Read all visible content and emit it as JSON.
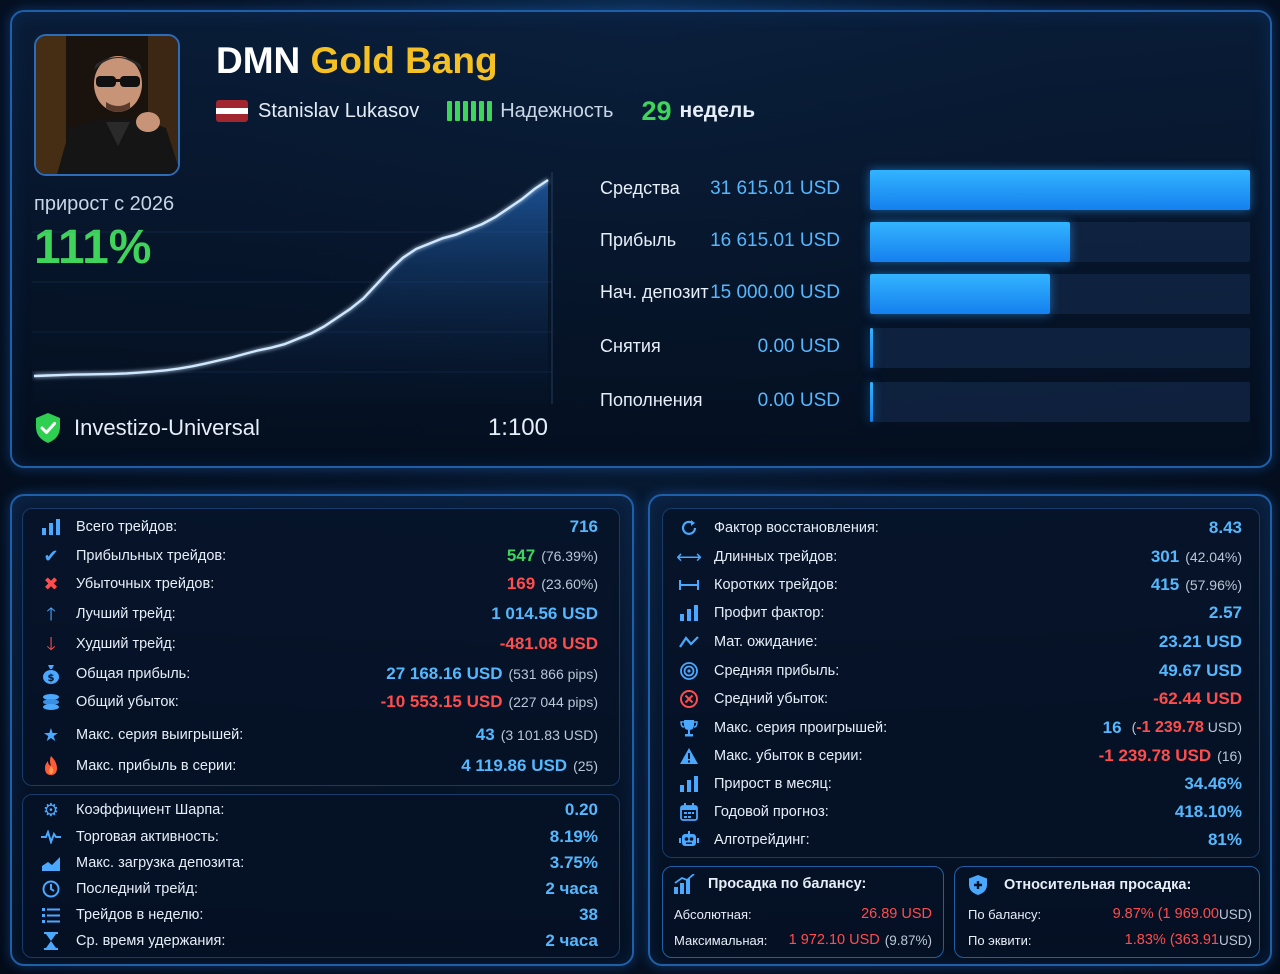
{
  "header": {
    "title_part1": "DMN",
    "title_part2": "Gold Bang",
    "author": "Stanislav Lukasov",
    "reliability_label": "Надежность",
    "weeks_value": "29",
    "weeks_label": "недель"
  },
  "growth": {
    "label": "прирост с 2026",
    "value": "111%"
  },
  "equity_chart": {
    "type": "line",
    "values": [
      0,
      0.3,
      0.5,
      0.8,
      0.9,
      1,
      1.2,
      1.5,
      1.9,
      2.5,
      3.2,
      4.2,
      5.5,
      7.0,
      8.8,
      10.5,
      12.5,
      14.5,
      16.0,
      18.0,
      21.0,
      24.0,
      28.0,
      33.0,
      38.0,
      44.0,
      52.0,
      60.0,
      67.0,
      72.0,
      75.0,
      78.0,
      80.0,
      83.0,
      86.0,
      90.0,
      95.0,
      100.0,
      106.0,
      111.0
    ]
  },
  "broker": {
    "name": "Investizo-Universal",
    "leverage": "1:100"
  },
  "balance_bars": [
    {
      "label": "Средства",
      "value": "31 615.01 USD",
      "fraction": 1.0
    },
    {
      "label": "Прибыль",
      "value": "16 615.01 USD",
      "fraction": 0.5255
    },
    {
      "label": "Нач. депозит",
      "value": "15 000.00 USD",
      "fraction": 0.4745
    },
    {
      "label": "Снятия",
      "value": "0.00 USD",
      "fraction": 0
    },
    {
      "label": "Пополнения",
      "value": "0.00 USD",
      "fraction": 0
    }
  ],
  "stats_left": {
    "trades_total_label": "Всего трейдов:",
    "trades_total": "716",
    "trades_win_label": "Прибыльных трейдов:",
    "trades_win": "547",
    "trades_win_pct": "(76.39%)",
    "trades_loss_label": "Убыточных трейдов:",
    "trades_loss": "169",
    "trades_loss_pct": "(23.60%)",
    "best_label": "Лучший трейд:",
    "best": "1 014.56 USD",
    "worst_label": "Худший трейд:",
    "worst": "-481.08 USD",
    "gross_profit_label": "Общая прибыль:",
    "gross_profit": "27 168.16 USD",
    "gross_profit_pips": "(531 866 pips)",
    "gross_loss_label": "Общий убыток:",
    "gross_loss": "-10 553.15 USD",
    "gross_loss_pips": "(227 044 pips)",
    "max_win_streak_label": "Макс. серия выигрышей:",
    "max_win_streak": "43",
    "max_win_streak_sub": "(3 101.83 USD)",
    "max_streak_profit_label": "Макс. прибыль в серии:",
    "max_streak_profit": "4 119.86 USD",
    "max_streak_profit_sub": "(25)"
  },
  "stats_left2": {
    "sharpe_label": "Коэффициент Шарпа:",
    "sharpe": "0.20",
    "activity_label": "Торговая активность:",
    "activity": "8.19%",
    "max_load_label": "Макс. загрузка депозита:",
    "max_load": "3.75%",
    "last_trade_label": "Последний трейд:",
    "last_trade": "2 часа",
    "trades_week_label": "Трейдов в неделю:",
    "trades_week": "38",
    "hold_time_label": "Ср. время удержания:",
    "hold_time": "2 часа"
  },
  "stats_right": {
    "recovery_label": "Фактор восстановления:",
    "recovery": "8.43",
    "long_label": "Длинных трейдов:",
    "long": "301",
    "long_pct": "(42.04%)",
    "short_label": "Коротких трейдов:",
    "short": "415",
    "short_pct": "(57.96%)",
    "profit_factor_label": "Профит фактор:",
    "profit_factor": "2.57",
    "expectancy_label": "Мат. ожидание:",
    "expectancy": "23.21 USD",
    "avg_profit_label": "Средняя прибыль:",
    "avg_profit": "49.67 USD",
    "avg_loss_label": "Средний убыток:",
    "avg_loss": "-62.44 USD",
    "max_loss_streak_label": "Макс. серия проигрышей:",
    "max_loss_streak": "16",
    "max_loss_streak_sub_open": "(",
    "max_loss_streak_sub_val": "-1 239.78",
    "max_loss_streak_sub_close": " USD)",
    "max_streak_loss_label": "Макс. убыток в серии:",
    "max_streak_loss": "-1 239.78 USD",
    "max_streak_loss_sub": "(16)",
    "monthly_label": "Прирост в месяц:",
    "monthly": "34.46%",
    "yearly_label": "Годовой прогноз:",
    "yearly": "418.10%",
    "algo_label": "Алготрейдинг:",
    "algo": "81%"
  },
  "drawdown_balance": {
    "title": "Просадка по балансу:",
    "abs_label": "Абсолютная:",
    "abs_value": "26.89 USD",
    "max_label": "Максимальная:",
    "max_value": "1 972.10 USD",
    "max_pct": "(9.87%)"
  },
  "drawdown_relative": {
    "title": "Относительная просадка:",
    "bal_label": "По балансу:",
    "bal_value": "9.87% (1 969.00",
    "bal_close": " USD)",
    "eq_label": "По эквити:",
    "eq_value": "1.83% (363.91",
    "eq_close": " USD)"
  },
  "colors": {
    "accent": "#55b8ff",
    "green": "#3fd45a",
    "red": "#ff4d4d",
    "gold": "#f4c023"
  }
}
